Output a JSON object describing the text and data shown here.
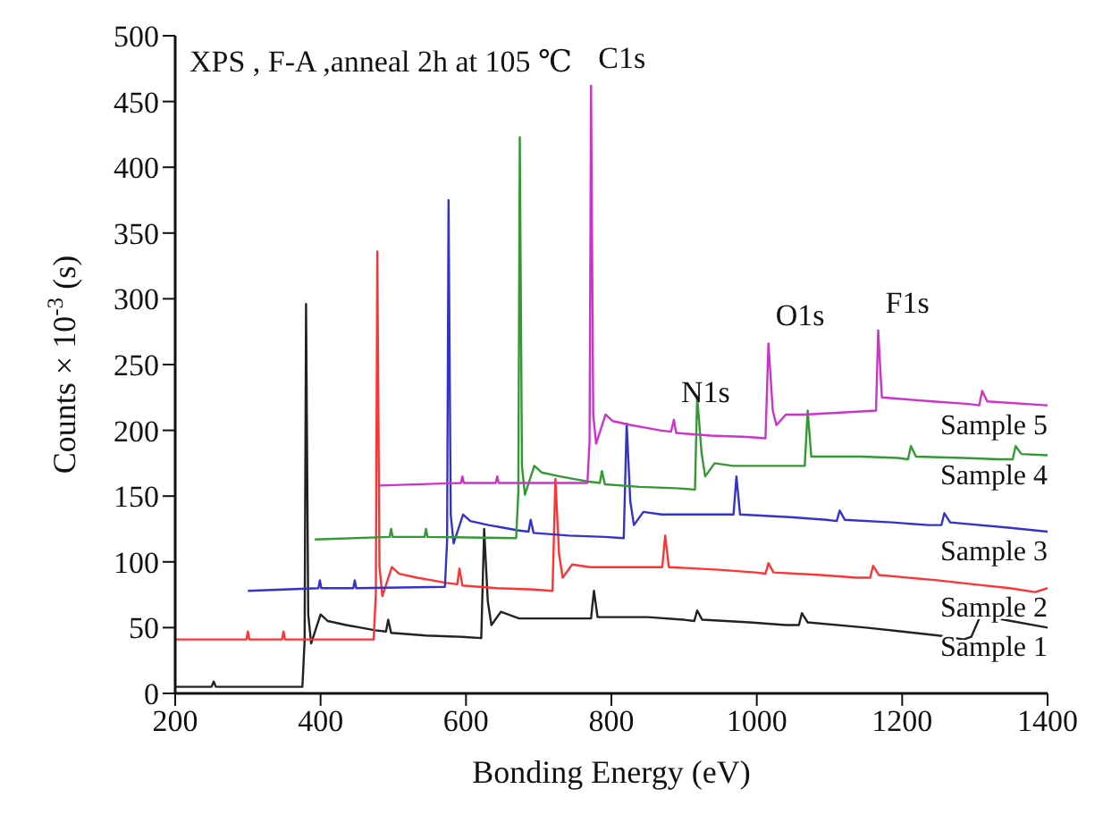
{
  "chart_data": {
    "type": "line",
    "title": "XPS , F-A ,anneal 2h at 105 ℃",
    "xlabel": "Bonding Energy (eV)",
    "ylabel": "Counts × 10$^{-3}$ (s)",
    "xlim": [
      200,
      1400
    ],
    "xticks": [
      200,
      400,
      600,
      800,
      1000,
      1200,
      1400
    ],
    "ylim": [
      0,
      500
    ],
    "yticks": [
      0,
      50,
      100,
      150,
      200,
      250,
      300,
      350,
      400,
      450,
      500
    ],
    "annotations": [
      {
        "text": "C1s",
        "x": 772,
        "y": 462
      },
      {
        "text": "N1s",
        "x": 886,
        "y": 208
      },
      {
        "text": "O1s",
        "x": 1016,
        "y": 266
      },
      {
        "text": "F1s",
        "x": 1167,
        "y": 276
      }
    ],
    "series": [
      {
        "name": "Sample 1",
        "color": "#222222",
        "x": [
          200,
          250,
          253,
          256,
          375,
          378,
          380,
          383,
          387,
          400,
          410,
          435,
          455,
          475,
          490,
          493,
          497,
          545,
          595,
          621,
          625,
          630,
          635,
          648,
          673,
          740,
          772,
          776,
          781,
          850,
          900,
          914,
          918,
          925,
          990,
          1040,
          1058,
          1062,
          1070,
          1150,
          1200,
          1250,
          1285,
          1295,
          1310,
          1320,
          1350,
          1400
        ],
        "values": [
          5,
          5,
          9,
          5,
          5,
          40,
          296,
          60,
          38,
          60,
          55,
          52,
          50,
          48,
          47,
          56,
          46,
          44,
          43,
          42,
          125,
          70,
          52,
          62,
          57,
          57,
          57,
          78,
          58,
          58,
          56,
          55,
          63,
          56,
          54,
          52,
          52,
          61,
          54,
          50,
          47,
          44,
          41,
          43,
          62,
          58,
          55,
          50
        ]
      },
      {
        "name": "Sample 2",
        "color": "#ff3333",
        "x": [
          200,
          298,
          300,
          302,
          347,
          349,
          351,
          473,
          476,
          478,
          481,
          485,
          498,
          508,
          533,
          553,
          573,
          588,
          591,
          595,
          643,
          693,
          719,
          723,
          728,
          733,
          746,
          771,
          838,
          870,
          874,
          879,
          948,
          998,
          1012,
          1016,
          1023,
          1088,
          1138,
          1156,
          1160,
          1168,
          1248,
          1298,
          1348,
          1383,
          1400
        ],
        "values": [
          41,
          41,
          47,
          41,
          41,
          47,
          41,
          41,
          76,
          336,
          96,
          74,
          96,
          91,
          88,
          86,
          84,
          83,
          95,
          82,
          80,
          79,
          78,
          163,
          106,
          88,
          98,
          96,
          96,
          96,
          120,
          96,
          94,
          92,
          91,
          99,
          92,
          90,
          88,
          88,
          97,
          90,
          86,
          83,
          80,
          77,
          80
        ]
      },
      {
        "name": "Sample 3",
        "color": "#3333cc",
        "x": [
          300,
          397,
          399,
          401,
          445,
          447,
          449,
          571,
          574,
          576,
          579,
          583,
          596,
          606,
          631,
          651,
          671,
          686,
          689,
          693,
          741,
          791,
          817,
          821,
          826,
          831,
          844,
          869,
          936,
          968,
          972,
          977,
          1046,
          1096,
          1110,
          1114,
          1121,
          1186,
          1236,
          1254,
          1258,
          1266,
          1346,
          1400
        ],
        "values": [
          78,
          80,
          86,
          80,
          80,
          86,
          80,
          81,
          116,
          375,
          136,
          114,
          136,
          131,
          128,
          126,
          124,
          123,
          132,
          122,
          120,
          119,
          118,
          205,
          146,
          128,
          138,
          136,
          136,
          136,
          165,
          136,
          134,
          132,
          131,
          139,
          132,
          130,
          128,
          128,
          137,
          130,
          126,
          123
        ]
      },
      {
        "name": "Sample 4",
        "color": "#339933",
        "x": [
          392,
          495,
          497,
          499,
          543,
          545,
          547,
          669,
          672,
          674,
          677,
          681,
          694,
          704,
          729,
          749,
          769,
          784,
          787,
          791,
          839,
          889,
          915,
          918,
          924,
          929,
          942,
          967,
          1034,
          1066,
          1070,
          1075,
          1144,
          1194,
          1208,
          1212,
          1219,
          1284,
          1334,
          1352,
          1356,
          1364,
          1400
        ],
        "values": [
          117,
          119,
          125,
          119,
          119,
          125,
          119,
          118,
          153,
          423,
          173,
          151,
          173,
          168,
          165,
          163,
          161,
          160,
          169,
          159,
          157,
          156,
          155,
          226,
          183,
          165,
          175,
          173,
          173,
          173,
          215,
          180,
          180,
          179,
          178,
          188,
          180,
          179,
          178,
          178,
          188,
          182,
          181
        ]
      },
      {
        "name": "Sample 5",
        "color": "#cc33cc",
        "x": [
          481,
          593,
          595,
          597,
          641,
          643,
          645,
          767,
          770,
          772,
          775,
          779,
          792,
          802,
          827,
          847,
          867,
          882,
          886,
          889,
          937,
          987,
          1012,
          1016,
          1022,
          1027,
          1040,
          1065,
          1132,
          1164,
          1167,
          1172,
          1242,
          1292,
          1306,
          1310,
          1317,
          1400
        ],
        "values": [
          158,
          160,
          165,
          160,
          160,
          165,
          160,
          160,
          192,
          462,
          212,
          190,
          212,
          207,
          204,
          202,
          200,
          199,
          208,
          198,
          196,
          195,
          194,
          266,
          215,
          204,
          212,
          212,
          214,
          215,
          276,
          225,
          222,
          220,
          219,
          230,
          222,
          219
        ]
      }
    ]
  }
}
